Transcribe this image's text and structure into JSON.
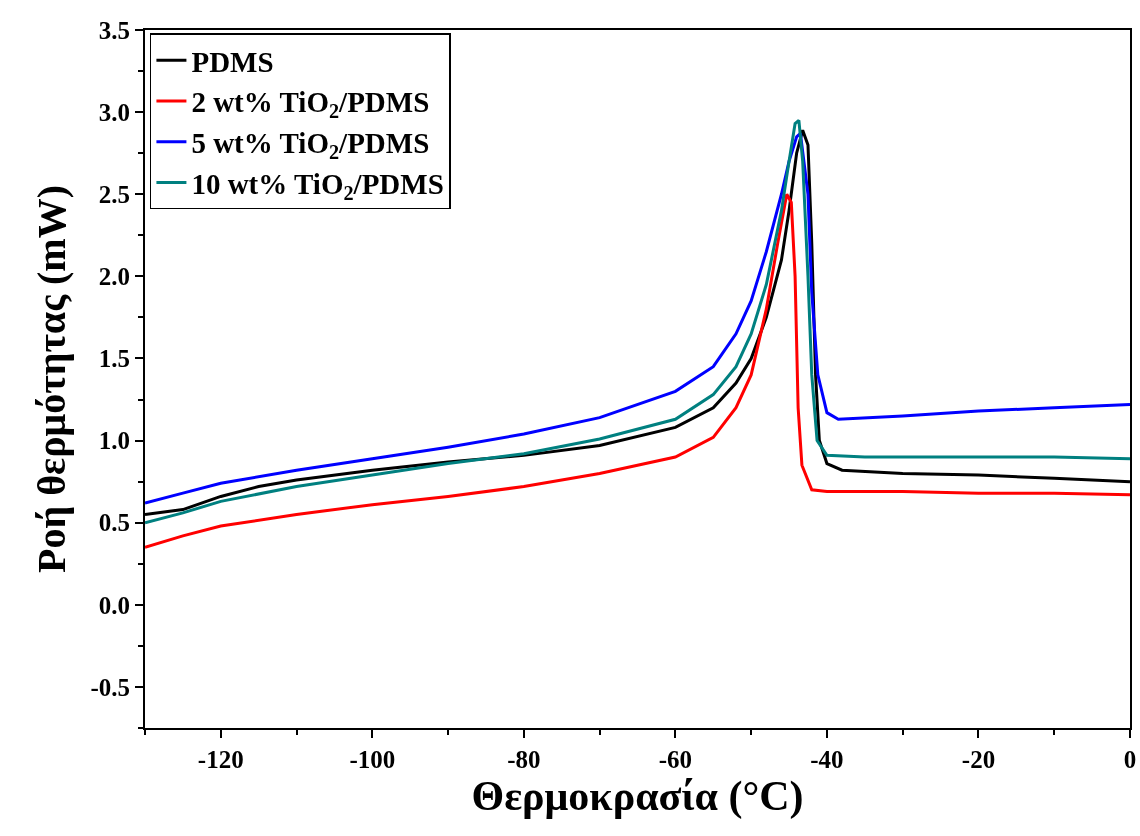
{
  "chart_data": {
    "type": "line",
    "xlabel": "Θερμοκρασία (°C)",
    "ylabel": "Ροή θερμότητας (mW)",
    "xlim": [
      -130,
      0
    ],
    "ylim": [
      -0.75,
      3.5
    ],
    "xticks": [
      -120,
      -100,
      -80,
      -60,
      -40,
      -20,
      0
    ],
    "yticks": [
      -0.5,
      {
        "value": 0,
        "label": "0.0"
      },
      0.5,
      {
        "value": 1,
        "label": "1.0"
      },
      1.5,
      {
        "value": 2,
        "label": "2.0"
      },
      2.5,
      {
        "value": 3,
        "label": "3.0"
      },
      3.5
    ],
    "grid": false,
    "legend": "top left",
    "line_style": "solid",
    "marker": "none",
    "series": [
      {
        "name": "PDMS",
        "color": "#000000",
        "x": [
          -130,
          -125,
          -120,
          -115,
          -110,
          -100,
          -90,
          -80,
          -70,
          -60,
          -55,
          -52,
          -50,
          -48,
          -46,
          -45,
          -44,
          -43.2,
          -42.5,
          -42,
          -41.5,
          -41,
          -40,
          -38,
          -30,
          -20,
          -10,
          0
        ],
        "values": [
          0.55,
          0.58,
          0.66,
          0.72,
          0.76,
          0.82,
          0.87,
          0.91,
          0.97,
          1.08,
          1.2,
          1.35,
          1.5,
          1.75,
          2.1,
          2.4,
          2.75,
          2.89,
          2.8,
          2.2,
          1.4,
          1.0,
          0.86,
          0.82,
          0.8,
          0.79,
          0.77,
          0.75
        ]
      },
      {
        "name": "2 wt% TiO$_{2}$/PDMS",
        "color": "#ff0000",
        "x": [
          -130,
          -125,
          -120,
          -110,
          -100,
          -90,
          -80,
          -70,
          -60,
          -55,
          -52,
          -50,
          -48,
          -46.5,
          -45.3,
          -44.7,
          -44.2,
          -43.8,
          -43.3,
          -42,
          -40,
          -30,
          -20,
          -10,
          0
        ],
        "values": [
          0.35,
          0.42,
          0.48,
          0.55,
          0.61,
          0.66,
          0.72,
          0.8,
          0.9,
          1.02,
          1.2,
          1.4,
          1.8,
          2.2,
          2.5,
          2.45,
          2.0,
          1.2,
          0.85,
          0.7,
          0.69,
          0.69,
          0.68,
          0.68,
          0.67
        ]
      },
      {
        "name": "5 wt% TiO$_{2}$/PDMS",
        "color": "#0000ff",
        "x": [
          -130,
          -125,
          -120,
          -110,
          -100,
          -90,
          -80,
          -70,
          -60,
          -55,
          -52,
          -50,
          -48,
          -46,
          -45,
          -44,
          -43.5,
          -42.5,
          -42,
          -41.2,
          -40,
          -38.5,
          -30,
          -20,
          -10,
          0
        ],
        "values": [
          0.62,
          0.68,
          0.74,
          0.82,
          0.89,
          0.96,
          1.04,
          1.14,
          1.3,
          1.45,
          1.65,
          1.85,
          2.15,
          2.5,
          2.7,
          2.85,
          2.87,
          2.5,
          1.9,
          1.4,
          1.17,
          1.13,
          1.15,
          1.18,
          1.2,
          1.22
        ]
      },
      {
        "name": "10 wt% TiO$_{2}$/PDMS",
        "color": "#008080",
        "x": [
          -130,
          -125,
          -120,
          -110,
          -100,
          -90,
          -80,
          -70,
          -60,
          -55,
          -52,
          -50,
          -48,
          -46,
          -45,
          -44.2,
          -43.7,
          -43.2,
          -42.5,
          -42,
          -41.3,
          -40,
          -35,
          -20,
          -10,
          0
        ],
        "values": [
          0.5,
          0.56,
          0.63,
          0.72,
          0.79,
          0.86,
          0.92,
          1.01,
          1.13,
          1.28,
          1.45,
          1.65,
          1.95,
          2.4,
          2.7,
          2.93,
          2.95,
          2.7,
          2.0,
          1.4,
          1.0,
          0.91,
          0.9,
          0.9,
          0.9,
          0.89
        ]
      }
    ]
  }
}
